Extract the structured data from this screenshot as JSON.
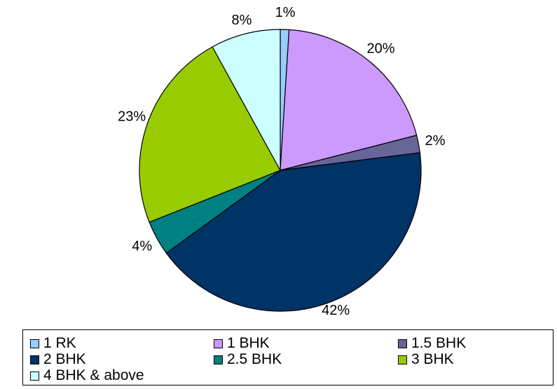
{
  "chart_data": {
    "type": "pie",
    "title": "",
    "labels": [
      "1 RK",
      "1 BHK",
      "1.5 BHK",
      "2 BHK",
      "2.5 BHK",
      "3 BHK",
      "4 BHK & above"
    ],
    "values": [
      1,
      20,
      2,
      42,
      4,
      23,
      8
    ],
    "value_labels": [
      "1%",
      "20%",
      "2%",
      "42%",
      "4%",
      "23%",
      "8%"
    ],
    "colors": [
      "#99CCFF",
      "#CC99FF",
      "#666699",
      "#003366",
      "#008080",
      "#99CC00",
      "#CCFFFF"
    ],
    "legend_position": "bottom"
  }
}
